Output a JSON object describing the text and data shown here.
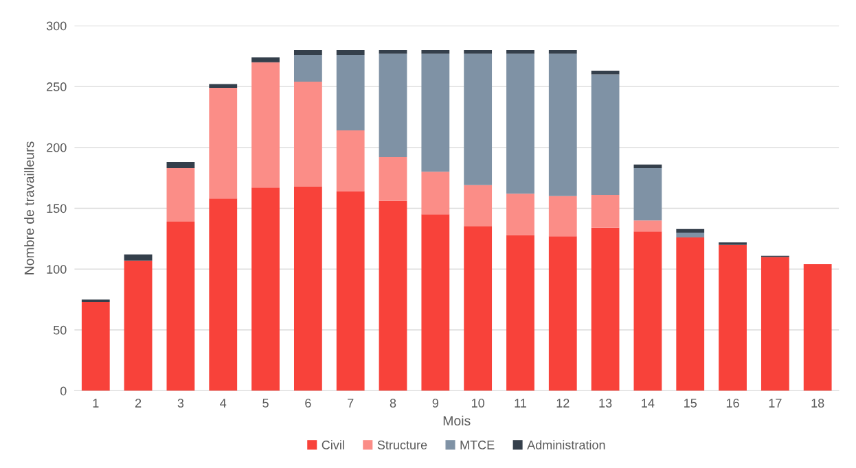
{
  "chart_data": {
    "type": "bar",
    "stacked": true,
    "xlabel": "Mois",
    "ylabel": "Nombre de travailleurs",
    "categories": [
      "1",
      "2",
      "3",
      "4",
      "5",
      "6",
      "7",
      "8",
      "9",
      "10",
      "11",
      "12",
      "13",
      "14",
      "15",
      "16",
      "17",
      "18"
    ],
    "series": [
      {
        "name": "Civil",
        "color": "#f8423a",
        "values": [
          73,
          107,
          139,
          158,
          167,
          168,
          164,
          156,
          145,
          135,
          128,
          127,
          134,
          131,
          126,
          120,
          110,
          104
        ]
      },
      {
        "name": "Structure",
        "color": "#fb8d87",
        "values": [
          0,
          0,
          44,
          91,
          103,
          86,
          50,
          36,
          35,
          34,
          34,
          33,
          27,
          9,
          0,
          0,
          0,
          0
        ]
      },
      {
        "name": "MTCE",
        "color": "#7f92a5",
        "values": [
          0,
          0,
          0,
          0,
          0,
          22,
          62,
          85,
          97,
          108,
          115,
          117,
          99,
          43,
          4,
          0,
          0,
          0
        ]
      },
      {
        "name": "Administration",
        "color": "#343f4b",
        "values": [
          2,
          5,
          5,
          3,
          4,
          4,
          4,
          3,
          3,
          3,
          3,
          3,
          3,
          3,
          3,
          2,
          1,
          0
        ]
      }
    ],
    "ylim": [
      0,
      300
    ],
    "yticks": [
      0,
      50,
      100,
      150,
      200,
      250,
      300
    ],
    "grid": "y",
    "legend": "bottom"
  }
}
